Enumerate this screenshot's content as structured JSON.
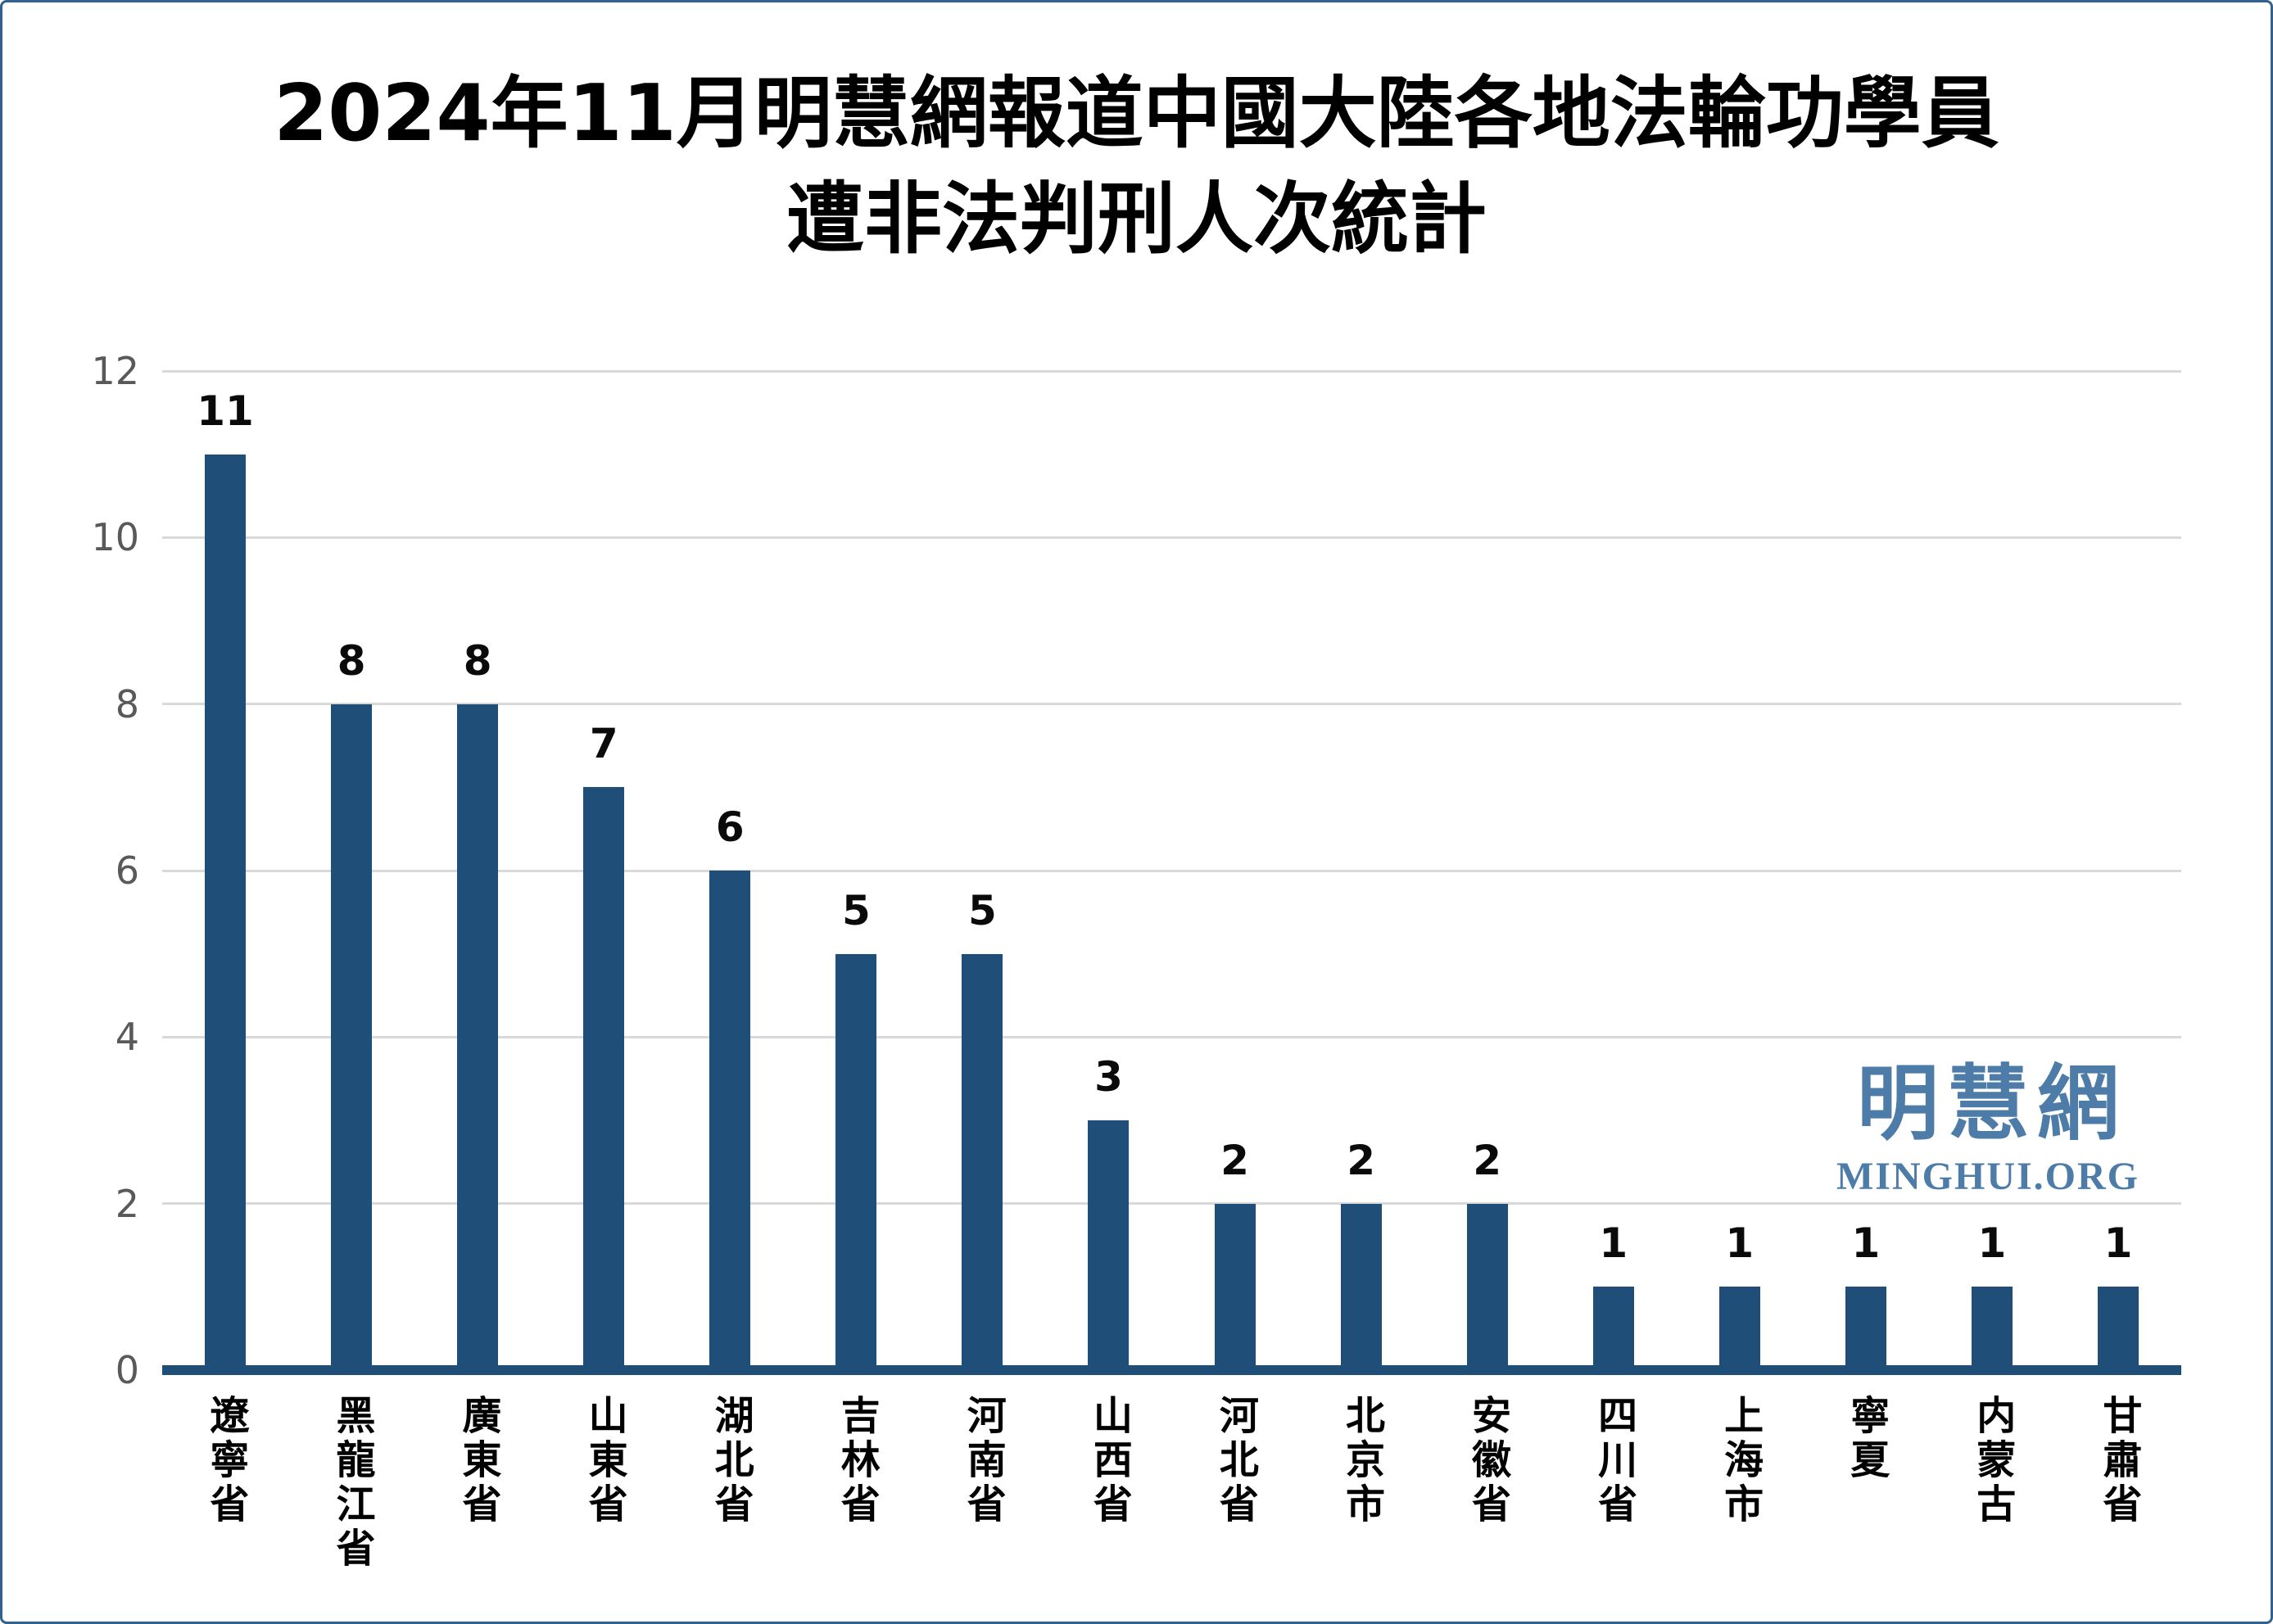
{
  "title": {
    "line1": "2024年11月明慧網報道中國大陸各地法輪功學員",
    "line2": "遭非法判刑人次統計"
  },
  "watermark": {
    "cjk": "明慧網",
    "latin": "MINGHUI.ORG"
  },
  "colors": {
    "bar": "#1F4E78",
    "axis_line": "#1F4E78",
    "gridline": "#D9D9D9",
    "tick_label": "#595959",
    "value_label": "#0a0a0a",
    "watermark": "#4E7CA9",
    "border": "#31618F",
    "background": "#FFFFFF"
  },
  "chart_data": {
    "type": "bar",
    "title": "2024年11月明慧網報道中國大陸各地法輪功學員遭非法判刑人次統計",
    "categories": [
      "遼寧省",
      "黑龍江省",
      "廣東省",
      "山東省",
      "湖北省",
      "吉林省",
      "河南省",
      "山西省",
      "河北省",
      "北京市",
      "安徽省",
      "四川省",
      "上海市",
      "寧夏",
      "内蒙古",
      "甘肅省"
    ],
    "values": [
      11,
      8,
      8,
      7,
      6,
      5,
      5,
      3,
      2,
      2,
      2,
      1,
      1,
      1,
      1,
      1
    ],
    "xlabel": "",
    "ylabel": "",
    "ylim": [
      0,
      12
    ],
    "yticks": [
      0,
      2,
      4,
      6,
      8,
      10,
      12
    ],
    "grid": true,
    "legend_position": "none",
    "data_labels": true
  }
}
